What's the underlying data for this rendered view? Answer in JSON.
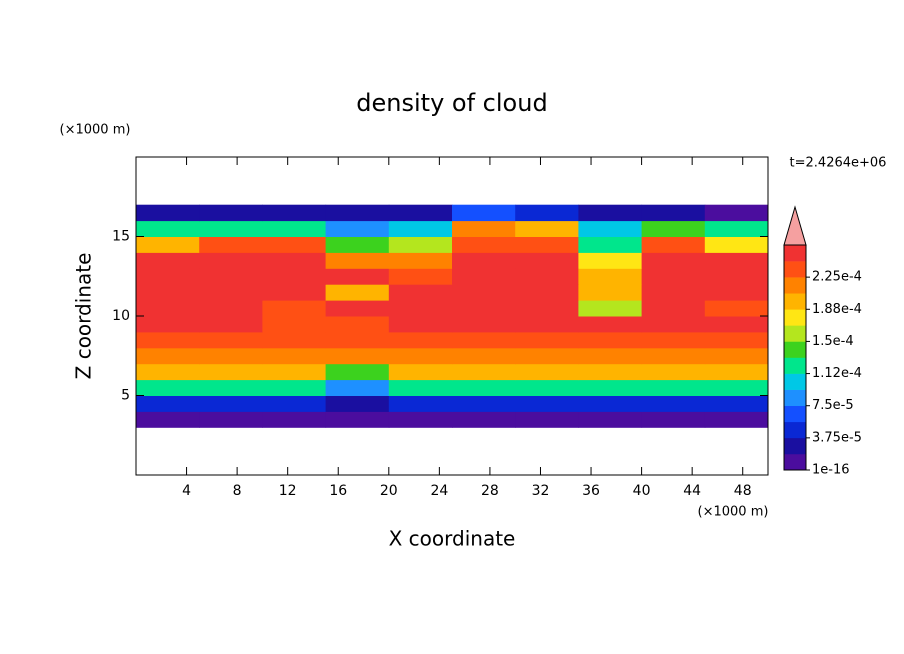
{
  "chart_data": {
    "type": "contour",
    "title": "density of cloud",
    "x_label": "X coordinate",
    "y_label": "Z coordinate",
    "x_unit": "(×1000 m)",
    "y_unit": "(×1000 m)",
    "time_label": "t=2.4264e+06",
    "xlim": [
      0,
      50
    ],
    "xticks": [
      4,
      8,
      12,
      16,
      20,
      24,
      28,
      32,
      36,
      40,
      44,
      48
    ],
    "ylim": [
      0,
      20
    ],
    "yticks": [
      5,
      10,
      15
    ],
    "field": {
      "xbins": [
        0,
        5,
        10,
        15,
        20,
        25,
        30,
        35,
        40,
        45,
        50
      ],
      "zbins": [
        3,
        4,
        5,
        6,
        7,
        8,
        9,
        10,
        11,
        12,
        13,
        14,
        15,
        16,
        17
      ],
      "values": [
        [
          1e-05,
          1e-05,
          1e-05,
          1e-05,
          1e-05,
          1e-05,
          1e-05,
          1e-05,
          1e-05,
          1e-05
        ],
        [
          5e-05,
          5e-05,
          5e-05,
          3e-05,
          5e-05,
          5e-05,
          5e-05,
          5e-05,
          5e-05,
          5e-05
        ],
        [
          0.00013,
          0.00013,
          0.00013,
          8e-05,
          0.00013,
          0.00013,
          0.00013,
          0.00013,
          0.00013,
          0.00013
        ],
        [
          0.00019,
          0.00019,
          0.00019,
          0.00015,
          0.00019,
          0.00019,
          0.00019,
          0.00019,
          0.00019,
          0.00019
        ],
        [
          0.000215,
          0.000215,
          0.00022,
          0.00022,
          0.000215,
          0.000215,
          0.000215,
          0.000215,
          0.000215,
          0.000215
        ],
        [
          0.000235,
          0.00023,
          0.00023,
          0.00023,
          0.000235,
          0.000235,
          0.000235,
          0.000235,
          0.000235,
          0.000235
        ],
        [
          0.00025,
          0.00025,
          0.00023,
          0.000235,
          0.00025,
          0.00025,
          0.00025,
          0.00025,
          0.00025,
          0.00025
        ],
        [
          0.00025,
          0.00025,
          0.000235,
          0.00025,
          0.00025,
          0.00025,
          0.00025,
          0.00016,
          0.00025,
          0.000235
        ],
        [
          0.00025,
          0.00025,
          0.00025,
          0.00019,
          0.00025,
          0.00025,
          0.00025,
          0.0002,
          0.00025,
          0.00025
        ],
        [
          0.00025,
          0.00025,
          0.00025,
          0.00025,
          0.000235,
          0.00025,
          0.00025,
          0.00019,
          0.00025,
          0.00025
        ],
        [
          0.00025,
          0.00025,
          0.00025,
          0.00022,
          0.00022,
          0.00025,
          0.00025,
          0.00017,
          0.00025,
          0.00025
        ],
        [
          0.00019,
          0.000235,
          0.000235,
          0.00015,
          0.00016,
          0.000235,
          0.000235,
          0.00013,
          0.000235,
          0.00017
        ],
        [
          0.00012,
          0.00013,
          0.00013,
          9e-05,
          0.0001,
          0.00022,
          0.0002,
          0.0001,
          0.00015,
          0.00013
        ],
        [
          2.5e-05,
          2.5e-05,
          2.5e-05,
          2.5e-05,
          3e-05,
          6e-05,
          4e-05,
          2.5e-05,
          2.5e-05,
          1e-05
        ]
      ]
    },
    "colorbar": {
      "lim": [
        1e-16,
        0.0002625
      ],
      "colors": [
        "#4b0d9e",
        "#1a0fa0",
        "#0a28d4",
        "#1450ff",
        "#1e90ff",
        "#00c8e6",
        "#00e68c",
        "#3cd21e",
        "#b4e61e",
        "#ffe614",
        "#ffb400",
        "#ff8200",
        "#ff5014",
        "#f03232"
      ],
      "extend_color": "#f5a0a0",
      "ticks": [
        1e-16,
        {
          "value": 3.75e-05,
          "label": "3.75e-5"
        },
        {
          "value": 7.5e-05,
          "label": "7.5e-5"
        },
        {
          "value": 0.0001125,
          "label": "1.12e-4"
        },
        {
          "value": 0.00015,
          "label": "1.5e-4"
        },
        {
          "value": 0.0001875,
          "label": "1.88e-4"
        },
        {
          "value": 0.000225,
          "label": "2.25e-4"
        }
      ]
    }
  }
}
